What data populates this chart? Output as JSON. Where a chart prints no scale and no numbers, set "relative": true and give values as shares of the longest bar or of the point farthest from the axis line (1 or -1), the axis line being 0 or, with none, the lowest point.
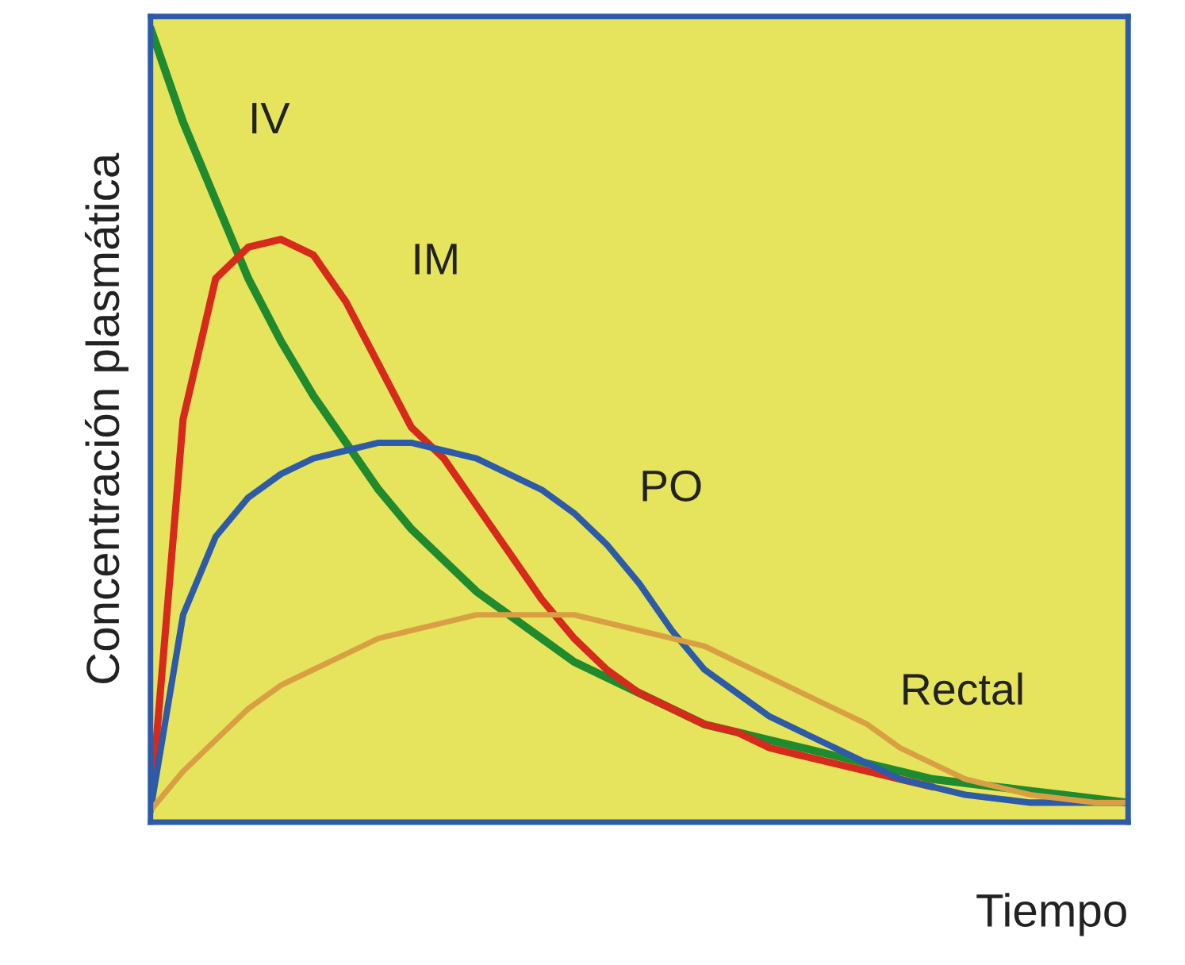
{
  "chart_data": {
    "type": "line",
    "relative": true,
    "xlabel": "Tiempo",
    "ylabel": "Concentración plasmática",
    "legend": false,
    "marker": "none",
    "line_style": "solid",
    "categories": [
      null,
      null,
      null,
      null,
      null,
      null,
      null,
      null,
      null,
      null,
      null,
      null,
      null,
      null,
      null,
      null,
      null,
      null,
      null,
      null,
      null,
      null,
      null,
      null,
      null,
      null,
      null,
      null,
      null,
      null,
      null
    ],
    "series": [
      {
        "name": "IV",
        "color": "#1f8a2e",
        "values": [
          1.0,
          0.88,
          0.78,
          0.68,
          0.6,
          0.53,
          0.47,
          0.41,
          0.36,
          0.32,
          0.28,
          0.25,
          0.22,
          0.19,
          0.17,
          0.15,
          0.13,
          0.11,
          0.1,
          0.09,
          0.08,
          0.07,
          0.06,
          0.05,
          0.04,
          0.035,
          0.03,
          0.025,
          0.02,
          0.015,
          0.01
        ]
      },
      {
        "name": "IM",
        "color": "#d62a1c",
        "values": [
          0,
          0.5,
          0.68,
          0.72,
          0.73,
          0.71,
          0.65,
          0.57,
          0.49,
          0.45,
          0.39,
          0.33,
          0.27,
          0.22,
          0.18,
          0.15,
          0.13,
          0.11,
          0.1,
          0.08,
          0.07,
          0.06,
          0.05,
          0.04,
          0.03,
          null,
          null,
          null,
          null,
          null,
          null
        ]
      },
      {
        "name": "PO",
        "color": "#2d5ba8",
        "values": [
          0,
          0.25,
          0.35,
          0.4,
          0.43,
          0.45,
          0.46,
          0.47,
          0.47,
          0.46,
          0.45,
          0.43,
          0.41,
          0.38,
          0.34,
          0.29,
          0.23,
          0.18,
          0.15,
          0.12,
          0.1,
          0.08,
          0.06,
          0.04,
          0.03,
          0.02,
          0.015,
          0.01,
          0.01,
          0.01,
          0.01
        ]
      },
      {
        "name": "Rectal",
        "color": "#d9a043",
        "values": [
          0,
          0.05,
          0.09,
          0.13,
          0.16,
          0.18,
          0.2,
          0.22,
          0.23,
          0.24,
          0.25,
          0.25,
          0.25,
          0.25,
          0.24,
          0.23,
          0.22,
          0.21,
          0.19,
          0.17,
          0.15,
          0.13,
          0.11,
          0.08,
          0.06,
          0.04,
          0.03,
          0.02,
          0.015,
          0.01,
          0.01
        ]
      }
    ]
  }
}
